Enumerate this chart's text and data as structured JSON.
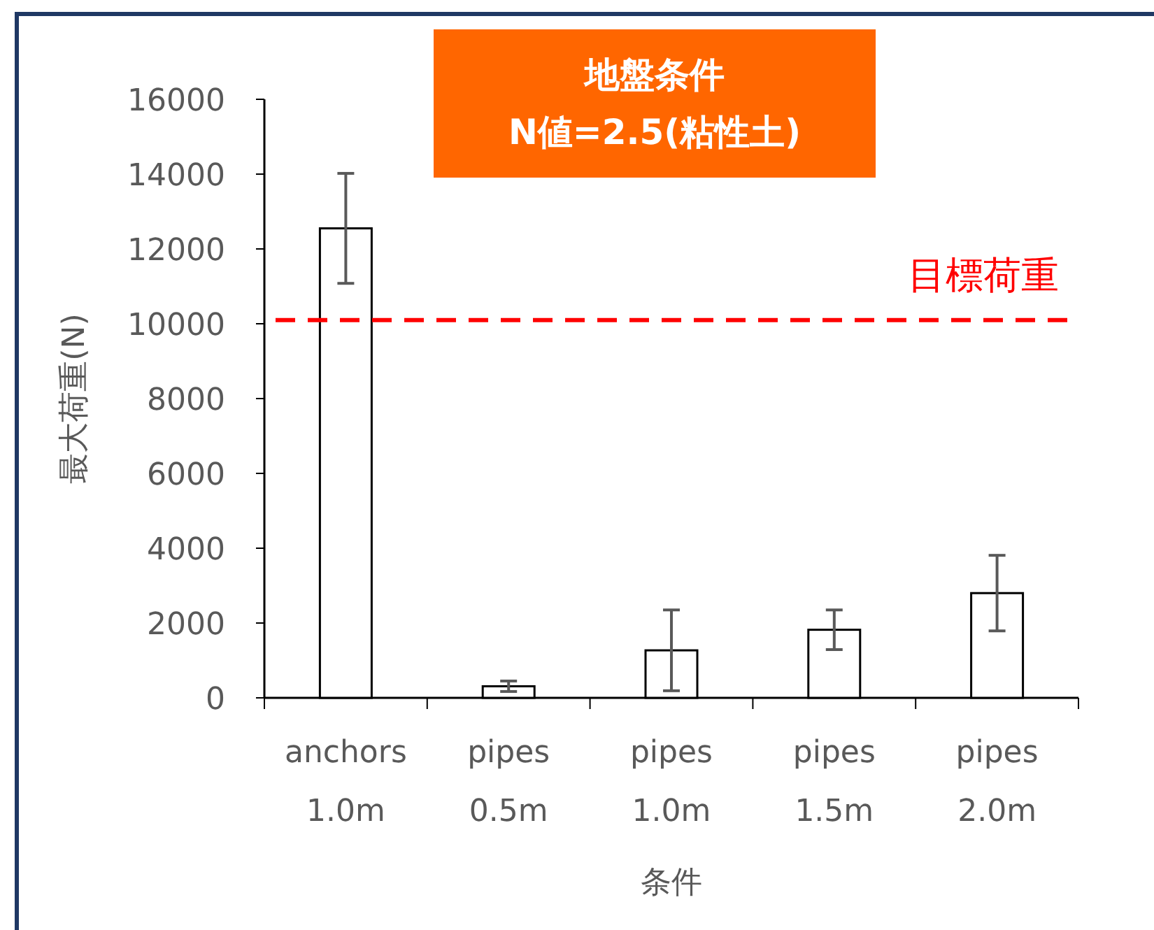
{
  "chart_data": {
    "type": "bar",
    "title": "地盤条件",
    "subtitle": "N値=2.5(粘性土)",
    "xlabel": "条件",
    "ylabel": "最大荷重(N)",
    "categories": [
      "anchors 1.0m",
      "pipes 0.5m",
      "pipes 1.0m",
      "pipes 1.5m",
      "pipes 2.0m"
    ],
    "values": [
      12550,
      310,
      1270,
      1820,
      2800
    ],
    "errors": [
      1470,
      140,
      1080,
      530,
      1010
    ],
    "color": "#ffffff",
    "ylim": [
      0,
      16000
    ],
    "yticks": [
      0,
      2000,
      4000,
      6000,
      8000,
      10000,
      12000,
      14000,
      16000
    ],
    "ref_lines": [
      {
        "axis": "y",
        "value": 10100,
        "label": "目標荷重",
        "color": "#ff0000",
        "line_style": "dashed"
      }
    ]
  }
}
